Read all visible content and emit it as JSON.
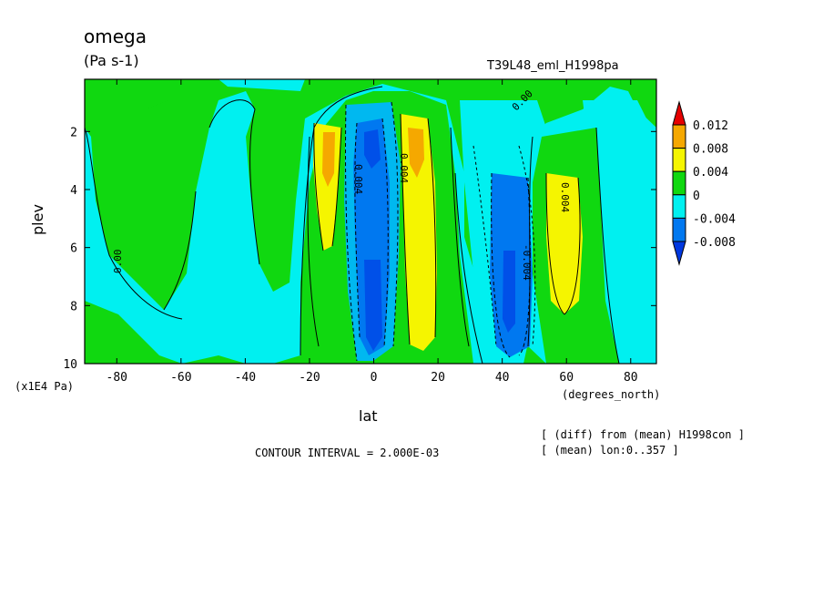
{
  "chart_data": {
    "type": "heatmap",
    "title": "omega",
    "units": "(Pa s-1)",
    "run_id": "T39L48_eml_H1998pa",
    "xlabel": "lat",
    "x_units": "(degrees_north)",
    "ylabel": "plev",
    "y_units": "(x1E4 Pa)",
    "xlim": [
      -90,
      88
    ],
    "ylim": [
      10,
      0.2
    ],
    "y_reversed": true,
    "x_ticks": [
      "-80",
      "-60",
      "-40",
      "-20",
      "0",
      "20",
      "40",
      "60",
      "80"
    ],
    "y_ticks": [
      "2",
      "4",
      "6",
      "8",
      "10"
    ],
    "contour_interval_text": "CONTOUR INTERVAL = 2.000E-03",
    "notes": [
      "[ (diff) from (mean) H1998con ]",
      "[ (mean) lon:0..357 ]"
    ],
    "contour_labels": [
      "0.00",
      "0.004",
      "-0.004",
      "0.004",
      "0.004",
      "0.00"
    ],
    "colorbar": {
      "labels": [
        "0.012",
        "0.008",
        "0.004",
        "0",
        "-0.004",
        "-0.008"
      ],
      "colors": [
        "#e60000",
        "#f5a800",
        "#f5f500",
        "#10d810",
        "#00f0f0",
        "#0078f0",
        "#0038e0"
      ]
    },
    "features": [
      {
        "lat": -13,
        "plev_top": 2.0,
        "plev_bottom": 6.4,
        "value": 0.006,
        "label": "positive (yellow/orange)"
      },
      {
        "lat": 0,
        "plev_top": 1.0,
        "plev_bottom": 9.8,
        "value": -0.006,
        "label": "negative (blue)"
      },
      {
        "lat": 13,
        "plev_top": 1.4,
        "plev_bottom": 9.4,
        "value": 0.007,
        "label": "positive (yellow/orange)"
      },
      {
        "lat": 43,
        "plev_top": 3.0,
        "plev_bottom": 9.8,
        "value": -0.006,
        "label": "negative (blue)"
      },
      {
        "lat": 62,
        "plev_top": 4.6,
        "plev_bottom": 9.4,
        "value": 0.005,
        "label": "positive (yellow)"
      }
    ]
  }
}
